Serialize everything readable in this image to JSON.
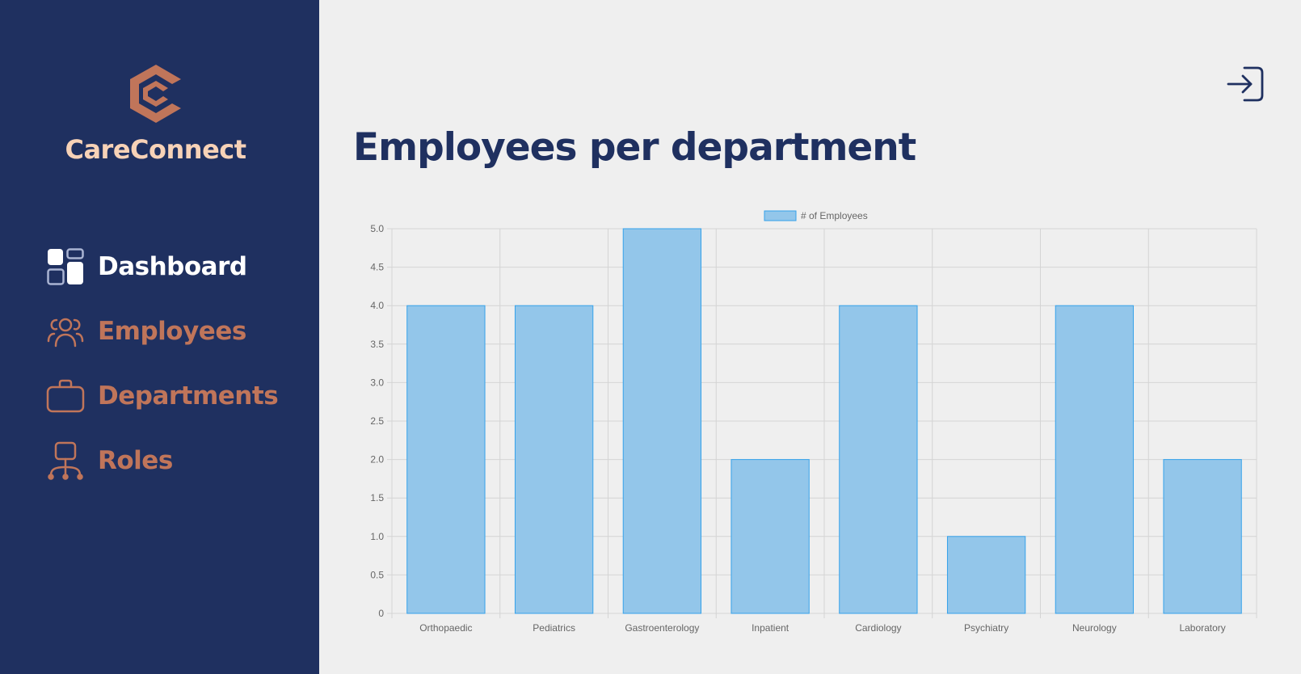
{
  "app": {
    "name": "CareConnect"
  },
  "sidebar": {
    "items": [
      {
        "label": "Dashboard",
        "icon": "dashboard-icon",
        "active": true
      },
      {
        "label": "Employees",
        "icon": "users-icon",
        "active": false
      },
      {
        "label": "Departments",
        "icon": "briefcase-icon",
        "active": false
      },
      {
        "label": "Roles",
        "icon": "org-chart-icon",
        "active": false
      }
    ]
  },
  "header": {
    "logout_icon": "logout-icon"
  },
  "main": {
    "title": "Employees per department"
  },
  "colors": {
    "sidebar_bg": "#1f3060",
    "accent": "#c0755a",
    "brand_text": "#f7d2b7",
    "bar_fill": "#93c6ea",
    "bar_stroke": "#36a2eb"
  },
  "chart_data": {
    "type": "bar",
    "categories": [
      "Orthopaedic",
      "Pediatrics",
      "Gastroenterology",
      "Inpatient",
      "Cardiology",
      "Psychiatry",
      "Neurology",
      "Laboratory"
    ],
    "series": [
      {
        "name": "# of Employees",
        "values": [
          4,
          4,
          5,
          2,
          4,
          1,
          4,
          2
        ]
      }
    ],
    "yticks": [
      "0",
      "0.5",
      "1.0",
      "1.5",
      "2.0",
      "2.5",
      "3.0",
      "3.5",
      "4.0",
      "4.5",
      "5.0"
    ],
    "ylim": [
      0,
      5
    ],
    "grid": true,
    "legend": "top-center"
  }
}
